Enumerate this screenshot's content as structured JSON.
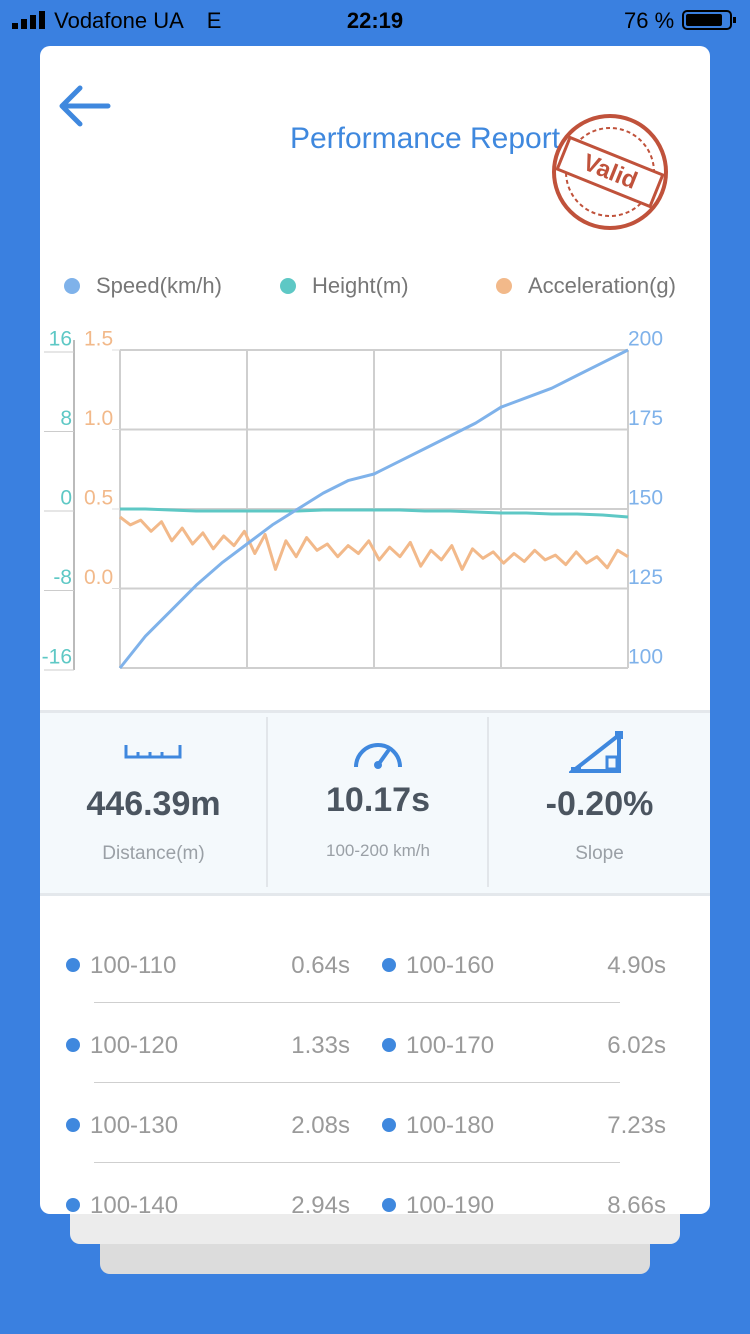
{
  "status_bar": {
    "carrier": "Vodafone UA",
    "network": "E",
    "time": "22:19",
    "battery": "76 %"
  },
  "header": {
    "title": "Performance Report",
    "stamp": "Valid"
  },
  "chart_data": {
    "type": "line",
    "series": [
      {
        "name": "Speed(km/h)",
        "color": "#7fb2ea",
        "axis": "y2",
        "values": [
          100,
          110,
          118,
          126,
          133,
          139,
          145,
          150,
          155,
          159,
          161,
          165,
          169,
          173,
          177,
          182,
          185,
          188,
          192,
          196,
          200
        ]
      },
      {
        "name": "Height(m)",
        "color": "#5ec8c5",
        "axis": "y3",
        "values": [
          0,
          0,
          -0.1,
          -0.2,
          -0.2,
          -0.2,
          -0.2,
          -0.2,
          -0.1,
          -0.1,
          -0.1,
          -0.1,
          -0.2,
          -0.2,
          -0.3,
          -0.4,
          -0.4,
          -0.5,
          -0.5,
          -0.6,
          -0.8
        ]
      },
      {
        "name": "Acceleration(g)",
        "color": "#f2b98a",
        "axis": "y",
        "values": [
          0.45,
          0.4,
          0.43,
          0.36,
          0.42,
          0.3,
          0.38,
          0.28,
          0.35,
          0.25,
          0.33,
          0.27,
          0.36,
          0.22,
          0.34,
          0.12,
          0.3,
          0.2,
          0.32,
          0.24,
          0.28,
          0.2,
          0.27,
          0.22,
          0.3,
          0.18,
          0.26,
          0.2,
          0.29,
          0.14,
          0.24,
          0.18,
          0.27,
          0.12,
          0.25,
          0.19,
          0.23,
          0.16,
          0.22,
          0.17,
          0.24,
          0.18,
          0.21,
          0.15,
          0.23,
          0.16,
          0.2,
          0.13,
          0.24,
          0.2
        ]
      }
    ],
    "ylim": [
      -0.5,
      1.5
    ],
    "yticks": [
      {
        "value": 0,
        "label": "0.0"
      },
      0.5,
      {
        "value": 1,
        "label": "1.0"
      },
      1.5
    ],
    "y2lim": [
      100,
      200
    ],
    "y2ticks": [
      100,
      125,
      150,
      175,
      200
    ],
    "y3lim": [
      -16,
      16
    ],
    "y3ticks": [
      -16,
      -8,
      0,
      8,
      16
    ],
    "grid": true
  },
  "stats": [
    {
      "value": "446.39m",
      "label": "Distance(m)"
    },
    {
      "value": "10.17s",
      "label": "100-200 km/h"
    },
    {
      "value": "-0.20%",
      "label": "Slope"
    }
  ],
  "table": {
    "rows": [
      [
        [
          "100-110",
          "0.64s"
        ],
        [
          "100-160",
          "4.90s"
        ]
      ],
      [
        [
          "100-120",
          "1.33s"
        ],
        [
          "100-170",
          "6.02s"
        ]
      ],
      [
        [
          "100-130",
          "2.08s"
        ],
        [
          "100-180",
          "7.23s"
        ]
      ],
      [
        [
          "100-140",
          "2.94s"
        ],
        [
          "100-190",
          "8.66s"
        ]
      ]
    ]
  }
}
